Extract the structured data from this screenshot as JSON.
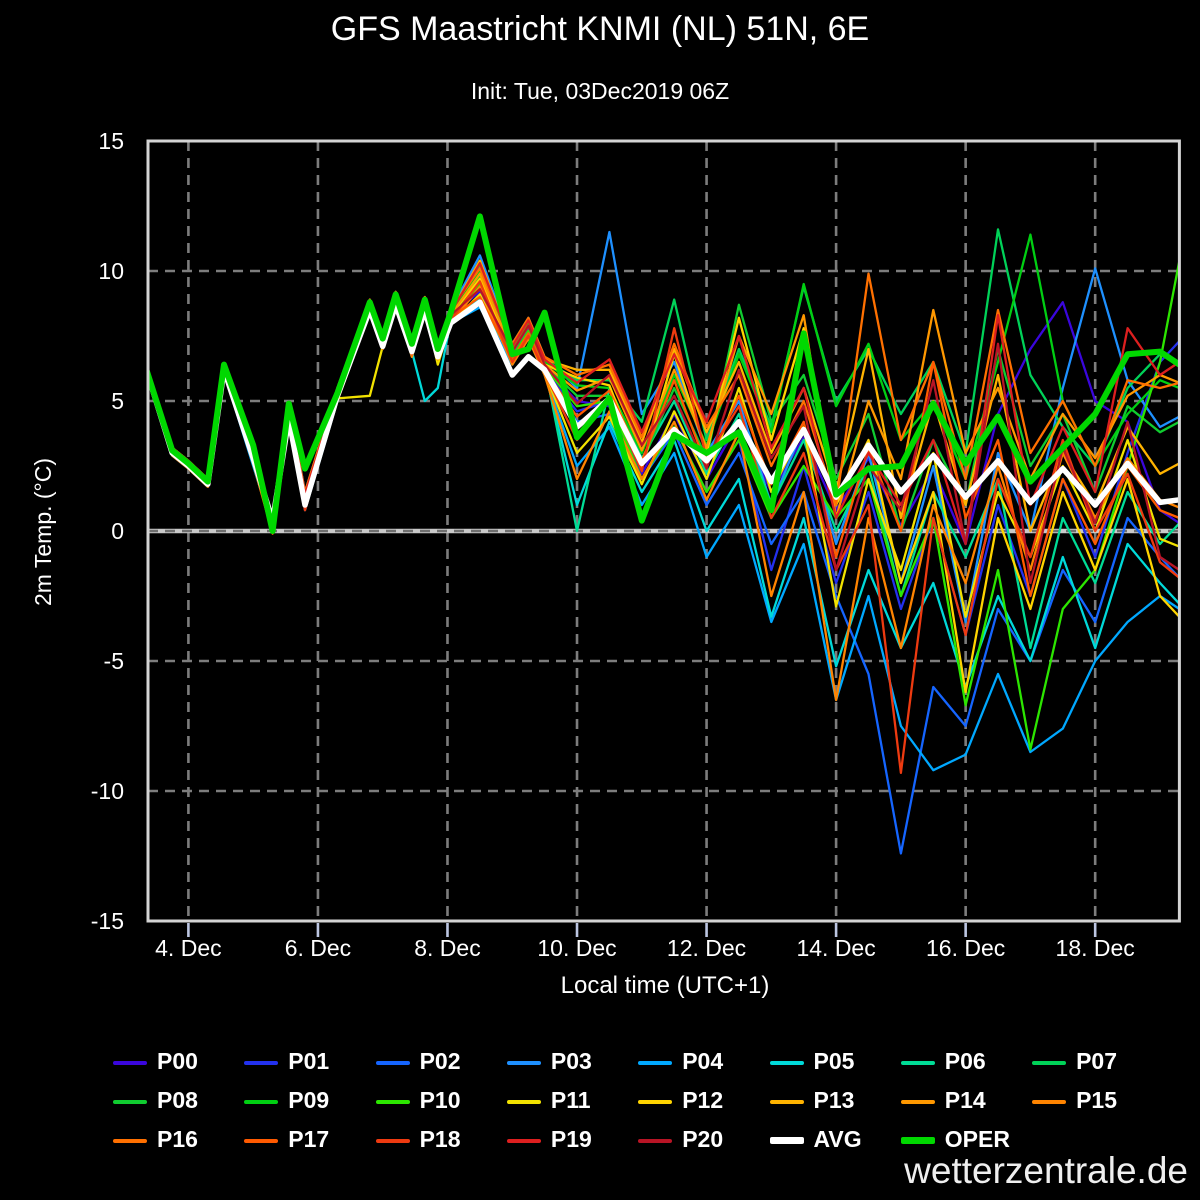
{
  "title": "GFS Maastricht KNMI (NL) 51N, 6E",
  "subtitle": "Init: Tue, 03Dec2019 06Z",
  "watermark": "wetterzentrale.de",
  "chart_data": {
    "type": "line",
    "title": "GFS Maastricht KNMI (NL) 51N, 6E",
    "subtitle": "Init: Tue, 03Dec2019 06Z",
    "xlabel": "Local time (UTC+1)",
    "ylabel": "2m Temp. (°C)",
    "ylim": [
      -15,
      15
    ],
    "x_range": [
      3.3,
      19.3
    ],
    "grid": "dashed",
    "zero_line": true,
    "legend_position": "bottom",
    "x_ticks": [
      {
        "value": 4,
        "label": "4. Dec"
      },
      {
        "value": 6,
        "label": "6. Dec"
      },
      {
        "value": 8,
        "label": "8. Dec"
      },
      {
        "value": 10,
        "label": "10. Dec"
      },
      {
        "value": 12,
        "label": "12. Dec"
      },
      {
        "value": 14,
        "label": "14. Dec"
      },
      {
        "value": 16,
        "label": "16. Dec"
      },
      {
        "value": 18,
        "label": "18. Dec"
      }
    ],
    "y_ticks": [
      {
        "value": 15,
        "label": "15"
      },
      {
        "value": 10,
        "label": "10"
      },
      {
        "value": 5,
        "label": "5"
      },
      {
        "value": 0,
        "label": "0"
      },
      {
        "value": -5,
        "label": "-5"
      },
      {
        "value": -10,
        "label": "-10"
      },
      {
        "value": -15,
        "label": "-15"
      }
    ],
    "x": [
      3.3,
      3.75,
      4,
      4.3,
      4.55,
      5,
      5.3,
      5.55,
      5.8,
      6.3,
      6.8,
      7,
      7.2,
      7.45,
      7.65,
      7.85,
      8.05,
      8.5,
      9,
      9.25,
      9.5,
      10,
      10.5,
      11,
      11.5,
      12,
      12.5,
      13,
      13.5,
      14,
      14.5,
      15,
      15.5,
      16,
      16.5,
      17,
      17.5,
      18,
      18.5,
      19,
      19.3
    ],
    "series": [
      {
        "name": "P00",
        "color": "#3a06dd",
        "width": 2.3,
        "values": [
          6.6,
          3.1,
          2.6,
          1.9,
          6.3,
          2.9,
          0.3,
          4.6,
          1.2,
          5.3,
          8.7,
          7.3,
          9.0,
          7.0,
          8.8,
          6.9,
          8.3,
          9.2,
          6.8,
          7.8,
          6.3,
          5.0,
          4.8,
          2.2,
          4.5,
          2.0,
          4.2,
          1.5,
          3.6,
          0.8,
          2.8,
          0.2,
          2.4,
          -0.5,
          4.5,
          7.0,
          8.8,
          5.0,
          4.2,
          0.8,
          0.3
        ]
      },
      {
        "name": "P01",
        "color": "#2331ee",
        "width": 2.3,
        "values": [
          6.6,
          3.0,
          2.5,
          1.8,
          6.2,
          2.7,
          0.4,
          4.4,
          1.0,
          5.2,
          8.6,
          7.2,
          8.9,
          6.9,
          8.7,
          6.8,
          8.2,
          9.0,
          6.6,
          7.6,
          6.2,
          4.6,
          5.0,
          2.5,
          4.0,
          1.5,
          3.5,
          -1.5,
          2.5,
          -2.0,
          1.5,
          -3.0,
          0.5,
          -4.0,
          1.0,
          -2.5,
          2.0,
          -1.0,
          3.0,
          6.5,
          7.3
        ]
      },
      {
        "name": "P02",
        "color": "#1565ff",
        "width": 2.3,
        "values": [
          6.5,
          3.0,
          2.5,
          1.8,
          6.2,
          2.6,
          0.2,
          4.3,
          0.9,
          5.1,
          8.5,
          7.1,
          8.8,
          6.8,
          8.6,
          6.7,
          8.1,
          8.8,
          6.5,
          7.5,
          6.1,
          4.2,
          4.5,
          2.0,
          3.8,
          1.0,
          3.0,
          -0.5,
          1.5,
          -2.5,
          -5.5,
          -12.4,
          -6.0,
          -7.5,
          -3.0,
          -5.0,
          -1.5,
          -3.5,
          0.5,
          -1.0,
          -1.8
        ]
      },
      {
        "name": "P03",
        "color": "#1e90ff",
        "width": 2.3,
        "values": [
          6.7,
          3.2,
          2.7,
          2.0,
          6.4,
          3.1,
          0.5,
          4.8,
          1.5,
          5.5,
          8.9,
          7.5,
          9.2,
          7.2,
          9.0,
          7.1,
          8.5,
          10.6,
          7.2,
          8.2,
          6.7,
          5.5,
          11.5,
          4.5,
          6.5,
          3.0,
          5.0,
          1.0,
          4.0,
          -0.5,
          3.0,
          -2.0,
          2.5,
          -3.5,
          3.0,
          0.0,
          5.5,
          10.1,
          5.8,
          4.0,
          4.4
        ]
      },
      {
        "name": "P04",
        "color": "#00a8ff",
        "width": 2.3,
        "values": [
          6.5,
          2.9,
          2.4,
          1.7,
          6.1,
          2.5,
          0.1,
          4.2,
          0.8,
          5.0,
          8.4,
          7.0,
          8.7,
          6.7,
          8.5,
          6.6,
          8.0,
          8.6,
          6.4,
          7.4,
          6.0,
          2.5,
          4.0,
          1.0,
          3.0,
          -1.0,
          1.0,
          -3.5,
          -0.5,
          -6.5,
          -2.5,
          -7.5,
          -9.2,
          -8.6,
          -5.5,
          -8.5,
          -7.6,
          -5.0,
          -3.5,
          -2.5,
          -3.0
        ]
      },
      {
        "name": "P05",
        "color": "#00d9d9",
        "width": 2.3,
        "values": [
          6.6,
          3.0,
          2.5,
          1.8,
          6.2,
          2.8,
          0.3,
          4.5,
          1.1,
          5.2,
          8.6,
          7.2,
          8.9,
          6.9,
          5.0,
          5.5,
          8.1,
          8.9,
          6.6,
          7.6,
          6.2,
          1.0,
          4.2,
          1.5,
          3.5,
          0.0,
          2.0,
          -3.3,
          0.5,
          -5.2,
          -1.5,
          -4.5,
          -2.0,
          -6.0,
          -2.5,
          -5.0,
          -1.0,
          -4.5,
          -0.5,
          -2.0,
          -2.8
        ]
      },
      {
        "name": "P06",
        "color": "#00dc96",
        "width": 2.3,
        "values": [
          6.6,
          3.1,
          2.6,
          1.9,
          6.3,
          2.9,
          0.4,
          4.6,
          1.2,
          5.3,
          8.7,
          7.3,
          9.0,
          7.0,
          8.8,
          6.9,
          8.3,
          9.3,
          6.9,
          7.9,
          6.4,
          0.0,
          5.5,
          2.8,
          5.0,
          2.2,
          4.5,
          1.0,
          3.5,
          0.0,
          2.5,
          -2.5,
          1.5,
          -1.0,
          2.0,
          -4.5,
          0.5,
          -2.0,
          1.5,
          -0.5,
          0.3
        ]
      },
      {
        "name": "P07",
        "color": "#00d258",
        "width": 2.3,
        "values": [
          6.7,
          3.2,
          2.7,
          2.0,
          6.4,
          3.0,
          0.5,
          4.7,
          1.4,
          5.4,
          8.8,
          7.4,
          9.1,
          7.1,
          8.9,
          7.0,
          8.4,
          10.2,
          7.1,
          8.1,
          6.6,
          5.8,
          5.8,
          4.2,
          8.9,
          3.5,
          7.0,
          4.0,
          9.4,
          5.0,
          7.0,
          4.5,
          6.5,
          3.0,
          11.6,
          6.0,
          4.0,
          2.5,
          5.5,
          6.8,
          6.5
        ]
      },
      {
        "name": "P08",
        "color": "#10cc30",
        "width": 2.3,
        "values": [
          6.6,
          3.1,
          2.6,
          1.9,
          6.3,
          2.9,
          0.3,
          4.6,
          1.2,
          5.3,
          8.7,
          7.3,
          9.0,
          7.0,
          8.8,
          6.9,
          8.3,
          9.8,
          6.9,
          7.9,
          6.4,
          5.2,
          5.2,
          2.6,
          5.5,
          2.8,
          8.7,
          4.2,
          6.0,
          2.0,
          4.5,
          0.0,
          3.5,
          1.0,
          7.0,
          2.5,
          4.5,
          1.5,
          4.8,
          3.8,
          4.2
        ]
      },
      {
        "name": "P09",
        "color": "#00cf12",
        "width": 2.3,
        "values": [
          6.6,
          3.1,
          2.6,
          1.9,
          6.3,
          2.9,
          0.4,
          4.6,
          1.3,
          5.3,
          8.7,
          7.3,
          9.0,
          7.0,
          8.8,
          6.9,
          8.3,
          10.0,
          7.0,
          8.0,
          6.5,
          5.6,
          5.5,
          3.0,
          6.0,
          3.3,
          6.8,
          3.8,
          9.5,
          4.8,
          7.2,
          3.5,
          5.0,
          2.0,
          6.5,
          11.4,
          5.0,
          2.5,
          4.5,
          5.8,
          5.5
        ]
      },
      {
        "name": "P10",
        "color": "#2ce600",
        "width": 2.3,
        "values": [
          6.6,
          3.0,
          2.5,
          1.8,
          6.2,
          2.8,
          0.2,
          4.5,
          1.1,
          5.2,
          8.6,
          7.2,
          8.9,
          6.9,
          8.7,
          6.8,
          8.2,
          9.5,
          6.7,
          7.7,
          6.3,
          4.8,
          5.0,
          2.0,
          4.0,
          1.5,
          3.5,
          0.5,
          2.5,
          0.5,
          2.0,
          -2.5,
          0.5,
          -6.7,
          -1.5,
          -8.4,
          -3.0,
          -1.5,
          2.5,
          6.5,
          10.4
        ]
      },
      {
        "name": "P11",
        "color": "#f2e200",
        "width": 2.3,
        "values": [
          6.5,
          3.0,
          2.5,
          1.8,
          6.2,
          2.7,
          0.2,
          4.4,
          1.0,
          5.1,
          5.2,
          7.1,
          8.8,
          6.8,
          8.6,
          6.4,
          8.0,
          9.1,
          6.5,
          7.5,
          6.1,
          3.0,
          4.4,
          1.8,
          4.6,
          2.0,
          5.5,
          1.5,
          4.0,
          -2.9,
          2.0,
          -1.5,
          3.0,
          -3.3,
          1.5,
          -1.0,
          2.5,
          0.0,
          3.5,
          -0.3,
          -0.6
        ]
      },
      {
        "name": "P12",
        "color": "#ffd400",
        "width": 2.3,
        "values": [
          6.6,
          3.1,
          2.6,
          1.9,
          6.3,
          2.9,
          0.3,
          4.6,
          1.2,
          5.3,
          8.7,
          7.3,
          9.0,
          7.0,
          8.8,
          6.9,
          8.3,
          9.7,
          6.9,
          7.9,
          6.4,
          5.9,
          5.6,
          2.4,
          6.8,
          3.0,
          8.2,
          3.5,
          7.8,
          1.0,
          3.5,
          -2.0,
          1.5,
          -6.2,
          0.5,
          -3.0,
          1.5,
          -1.5,
          2.0,
          -2.5,
          -3.3
        ]
      },
      {
        "name": "P13",
        "color": "#ffb300",
        "width": 2.3,
        "values": [
          6.7,
          3.2,
          2.7,
          2.0,
          6.4,
          3.0,
          0.4,
          4.7,
          1.3,
          5.4,
          8.8,
          7.4,
          9.1,
          7.1,
          8.9,
          7.0,
          8.4,
          10.4,
          7.1,
          8.1,
          6.6,
          6.2,
          6.2,
          3.4,
          7.0,
          3.8,
          6.5,
          3.0,
          5.5,
          1.5,
          7.0,
          0.5,
          5.0,
          1.0,
          6.0,
          0.0,
          3.0,
          1.0,
          4.0,
          2.2,
          2.6
        ]
      },
      {
        "name": "P14",
        "color": "#ff9800",
        "width": 2.3,
        "values": [
          6.6,
          3.1,
          2.6,
          1.9,
          6.3,
          2.9,
          0.3,
          4.6,
          1.2,
          5.3,
          8.7,
          7.3,
          9.0,
          7.0,
          8.8,
          6.9,
          8.3,
          9.9,
          6.9,
          7.9,
          6.4,
          5.4,
          5.9,
          3.1,
          6.2,
          3.2,
          7.5,
          4.5,
          8.3,
          0.5,
          5.0,
          2.0,
          8.5,
          3.0,
          5.5,
          2.0,
          4.5,
          2.8,
          5.2,
          6.0,
          5.7
        ]
      },
      {
        "name": "P15",
        "color": "#ff8400",
        "width": 2.3,
        "values": [
          6.5,
          2.9,
          2.4,
          1.7,
          6.1,
          2.6,
          -0.1,
          4.3,
          0.9,
          5.0,
          8.4,
          7.0,
          8.7,
          6.7,
          8.5,
          6.6,
          8.0,
          9.4,
          6.4,
          7.4,
          6.0,
          2.0,
          4.6,
          2.0,
          4.2,
          1.2,
          3.8,
          -2.5,
          1.5,
          -6.5,
          0.5,
          -4.5,
          1.0,
          -2.0,
          2.5,
          -1.5,
          3.0,
          0.5,
          2.8,
          1.2,
          0.9
        ]
      },
      {
        "name": "P16",
        "color": "#ff7000",
        "width": 2.3,
        "values": [
          6.7,
          3.2,
          2.7,
          2.0,
          6.4,
          3.1,
          0.5,
          4.8,
          1.5,
          5.5,
          8.9,
          7.5,
          9.2,
          7.2,
          9.0,
          7.1,
          8.5,
          10.1,
          7.2,
          8.2,
          6.7,
          6.0,
          6.4,
          3.6,
          7.2,
          4.0,
          6.0,
          2.5,
          5.0,
          1.0,
          9.9,
          3.5,
          6.5,
          2.0,
          8.5,
          3.0,
          5.0,
          2.5,
          5.8,
          5.5,
          5.7
        ]
      },
      {
        "name": "P17",
        "color": "#ff5a00",
        "width": 2.3,
        "values": [
          6.6,
          3.0,
          2.5,
          1.8,
          6.2,
          2.8,
          0.3,
          4.5,
          1.1,
          5.2,
          8.6,
          7.2,
          8.9,
          6.9,
          8.7,
          6.8,
          8.2,
          9.0,
          6.6,
          7.6,
          6.2,
          4.4,
          5.4,
          2.7,
          5.8,
          2.5,
          5.2,
          1.8,
          4.2,
          -1.0,
          3.2,
          0.0,
          6.5,
          0.5,
          3.5,
          -2.5,
          2.0,
          -0.5,
          2.5,
          0.8,
          0.5
        ]
      },
      {
        "name": "P18",
        "color": "#ee3a10",
        "width": 2.3,
        "values": [
          6.5,
          3.0,
          2.5,
          1.8,
          6.2,
          2.6,
          0.2,
          4.3,
          0.8,
          5.1,
          8.5,
          7.1,
          8.8,
          6.8,
          8.6,
          6.7,
          8.1,
          9.6,
          6.5,
          7.5,
          6.1,
          3.5,
          5.1,
          2.3,
          7.8,
          2.8,
          4.8,
          0.5,
          3.0,
          -1.5,
          1.0,
          -9.3,
          0.5,
          -4.0,
          2.0,
          -1.0,
          3.5,
          0.0,
          2.2,
          -1.2,
          -1.8
        ]
      },
      {
        "name": "P19",
        "color": "#dd1f1f",
        "width": 2.3,
        "values": [
          6.7,
          3.2,
          2.7,
          2.0,
          6.4,
          3.0,
          0.5,
          4.7,
          1.4,
          5.4,
          8.8,
          7.4,
          9.1,
          7.1,
          8.9,
          7.0,
          8.4,
          10.3,
          7.1,
          8.1,
          6.6,
          5.7,
          6.6,
          3.8,
          6.8,
          4.2,
          7.5,
          3.2,
          5.5,
          0.5,
          3.0,
          1.0,
          3.5,
          -0.5,
          8.3,
          1.0,
          4.0,
          1.5,
          7.8,
          6.0,
          6.5
        ]
      },
      {
        "name": "P20",
        "color": "#b81425",
        "width": 2.3,
        "values": [
          6.6,
          3.1,
          2.6,
          1.9,
          6.3,
          2.9,
          0.4,
          4.6,
          1.2,
          5.3,
          8.7,
          7.3,
          9.0,
          7.0,
          8.8,
          6.9,
          8.3,
          9.3,
          6.9,
          7.9,
          6.4,
          4.9,
          6.0,
          3.3,
          5.2,
          2.4,
          6.2,
          2.8,
          4.8,
          -1.5,
          2.5,
          0.8,
          5.8,
          -0.5,
          7.2,
          -2.0,
          3.2,
          0.3,
          4.2,
          -1.0,
          -1.5
        ]
      },
      {
        "name": "AVG",
        "color": "#ffffff",
        "width": 5.5,
        "values": [
          6.6,
          3.0,
          2.5,
          1.8,
          6.2,
          2.8,
          0.4,
          4.3,
          1.0,
          5.2,
          8.5,
          7.1,
          8.7,
          6.9,
          8.5,
          6.7,
          8.0,
          8.8,
          6.0,
          6.7,
          6.2,
          4.0,
          5.1,
          2.6,
          3.9,
          2.7,
          4.2,
          1.9,
          3.9,
          1.3,
          3.3,
          1.5,
          2.9,
          1.3,
          2.7,
          1.1,
          2.4,
          1.0,
          2.6,
          1.1,
          1.2
        ]
      },
      {
        "name": "OPER",
        "color": "#00d800",
        "width": 6.0,
        "values": [
          6.6,
          3.1,
          2.6,
          1.9,
          6.4,
          3.3,
          0.0,
          4.9,
          2.4,
          5.3,
          8.8,
          7.4,
          9.1,
          7.2,
          8.9,
          7.0,
          8.4,
          12.1,
          6.8,
          7.0,
          8.4,
          3.6,
          5.1,
          0.4,
          3.7,
          3.0,
          3.8,
          0.8,
          7.6,
          1.4,
          2.4,
          2.5,
          4.9,
          2.6,
          4.4,
          1.9,
          3.2,
          4.5,
          6.8,
          6.9,
          6.4
        ]
      }
    ]
  },
  "style_colors": {
    "background": "#000000",
    "frame": "#d4d4d4",
    "grid_dash": "#7d7d7d",
    "zero_line": "#c9c9c9",
    "tick_mark": "#bcc6e2",
    "text": "#ffffff"
  }
}
